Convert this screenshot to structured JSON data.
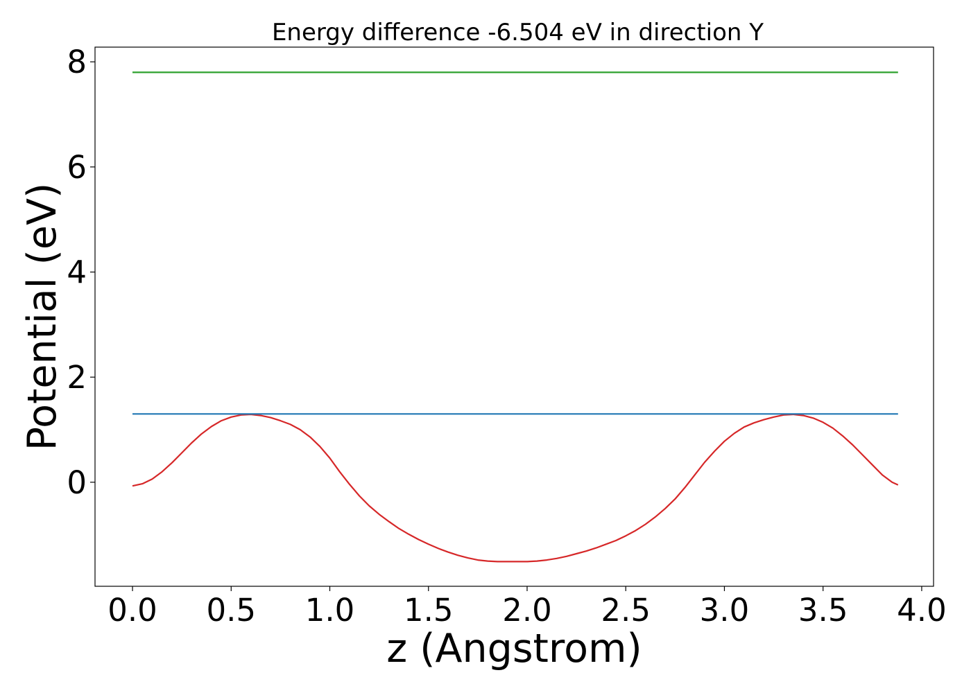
{
  "chart_data": {
    "type": "line",
    "title": "Energy difference -6.504 eV in direction Y",
    "xlabel": "z (Angstrom)",
    "ylabel": "Potential (eV)",
    "xlim": [
      -0.19,
      4.06
    ],
    "ylim": [
      -1.98,
      8.28
    ],
    "xticks": [
      "0.0",
      "0.5",
      "1.0",
      "1.5",
      "2.0",
      "2.5",
      "3.0",
      "3.5",
      "4.0"
    ],
    "xtick_values": [
      0.0,
      0.5,
      1.0,
      1.5,
      2.0,
      2.5,
      3.0,
      3.5,
      4.0
    ],
    "yticks": [
      "0",
      "2",
      "4",
      "6",
      "8"
    ],
    "ytick_values": [
      0,
      2,
      4,
      6,
      8
    ],
    "grid": false,
    "series": [
      {
        "color": "#d62728",
        "x": [
          0.0,
          0.05,
          0.1,
          0.15,
          0.2,
          0.25,
          0.3,
          0.35,
          0.4,
          0.45,
          0.5,
          0.55,
          0.6,
          0.65,
          0.7,
          0.75,
          0.8,
          0.85,
          0.9,
          0.95,
          1.0,
          1.05,
          1.1,
          1.15,
          1.2,
          1.25,
          1.3,
          1.35,
          1.4,
          1.45,
          1.5,
          1.55,
          1.6,
          1.65,
          1.7,
          1.75,
          1.8,
          1.85,
          1.9,
          1.95,
          2.0,
          2.05,
          2.1,
          2.15,
          2.2,
          2.25,
          2.3,
          2.35,
          2.4,
          2.45,
          2.5,
          2.55,
          2.6,
          2.65,
          2.7,
          2.75,
          2.8,
          2.85,
          2.9,
          2.95,
          3.0,
          3.05,
          3.1,
          3.15,
          3.2,
          3.25,
          3.3,
          3.35,
          3.4,
          3.45,
          3.5,
          3.55,
          3.6,
          3.65,
          3.7,
          3.75,
          3.8,
          3.85,
          3.88
        ],
        "y": [
          -0.07,
          -0.03,
          0.06,
          0.2,
          0.37,
          0.56,
          0.75,
          0.92,
          1.06,
          1.17,
          1.24,
          1.28,
          1.29,
          1.27,
          1.23,
          1.17,
          1.1,
          1.0,
          0.86,
          0.68,
          0.46,
          0.2,
          -0.04,
          -0.26,
          -0.45,
          -0.61,
          -0.75,
          -0.88,
          -0.99,
          -1.09,
          -1.18,
          -1.26,
          -1.33,
          -1.39,
          -1.44,
          -1.48,
          -1.5,
          -1.51,
          -1.51,
          -1.51,
          -1.51,
          -1.5,
          -1.48,
          -1.45,
          -1.41,
          -1.36,
          -1.31,
          -1.25,
          -1.18,
          -1.11,
          -1.02,
          -0.92,
          -0.8,
          -0.66,
          -0.5,
          -0.32,
          -0.1,
          0.14,
          0.38,
          0.59,
          0.78,
          0.93,
          1.05,
          1.13,
          1.19,
          1.24,
          1.28,
          1.29,
          1.27,
          1.22,
          1.14,
          1.03,
          0.88,
          0.71,
          0.52,
          0.33,
          0.14,
          0.0,
          -0.05
        ]
      },
      {
        "color": "#1f77b4",
        "x": [
          0.0,
          3.88
        ],
        "y": [
          1.3,
          1.3
        ]
      },
      {
        "color": "#2ca02c",
        "x": [
          0.0,
          3.88
        ],
        "y": [
          7.8,
          7.8
        ]
      }
    ]
  }
}
